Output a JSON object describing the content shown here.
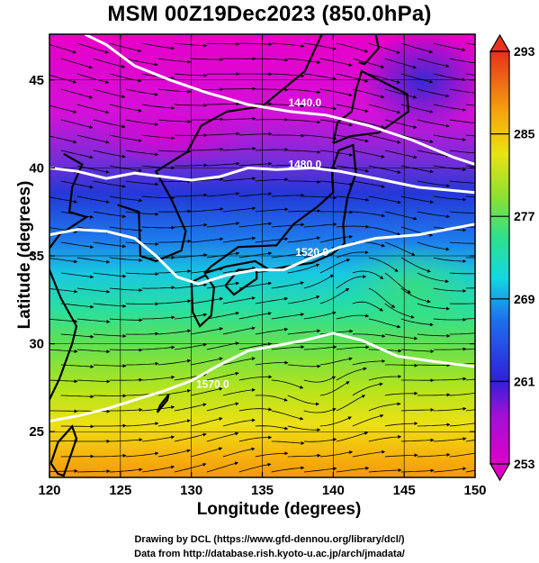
{
  "title": "MSM 00Z19Dec2023 (850.0hPa)",
  "x_axis": {
    "label": "Longitude (degrees)",
    "ticks": [
      120,
      125,
      130,
      135,
      140,
      145,
      150
    ],
    "range": [
      120,
      150
    ]
  },
  "y_axis": {
    "label": "Latitude  (degrees)",
    "ticks": [
      25,
      30,
      35,
      40,
      45
    ],
    "range": [
      22.4,
      47.6
    ]
  },
  "colorbar": {
    "min": 253,
    "max": 293,
    "labels": [
      253,
      261,
      269,
      277,
      285,
      293
    ],
    "colors": [
      "#d900d0",
      "#8a1ed8",
      "#2030d8",
      "#1f90ee",
      "#16d9d0",
      "#3ee070",
      "#b8e61a",
      "#f5e010",
      "#f69a0c",
      "#e8341a"
    ]
  },
  "contours": [
    {
      "label": "1440.0",
      "lon": 138,
      "lat": 43.5
    },
    {
      "label": "1480.0",
      "lon": 138,
      "lat": 40.0
    },
    {
      "label": "1520.0",
      "lon": 138.5,
      "lat": 35.0
    },
    {
      "label": "1570.0",
      "lon": 131.5,
      "lat": 27.5
    }
  ],
  "credits": [
    "Drawing by DCL (https://www.gfd-dennou.org/library/dcl/)",
    "Data from http://database.rish.kyoto-u.ac.jp/arch/jmadata/"
  ]
}
